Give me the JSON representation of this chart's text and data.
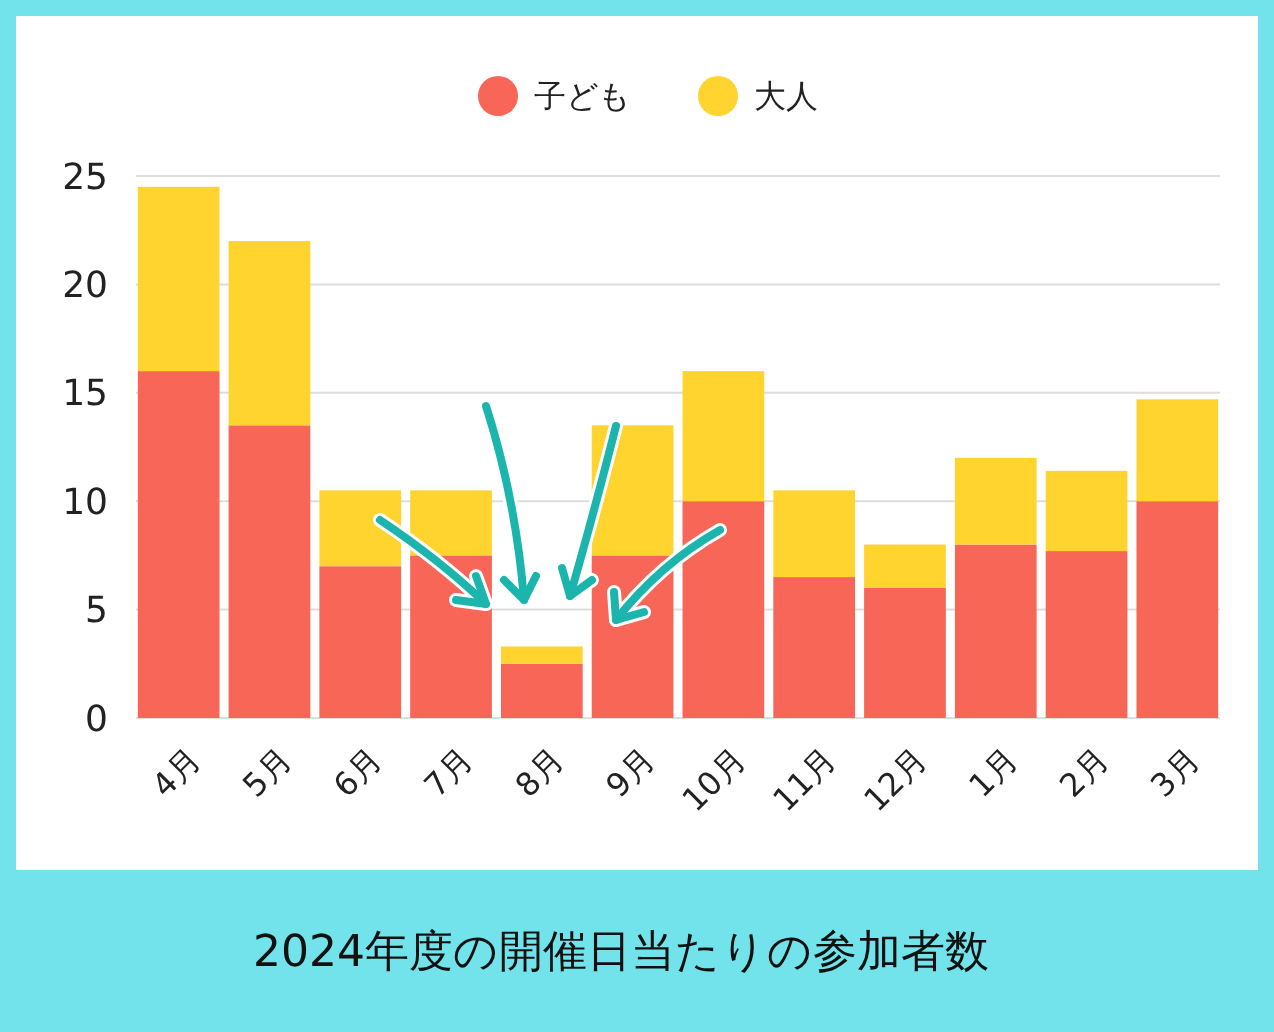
{
  "chart_data": {
    "type": "bar",
    "stacked": true,
    "title": "2024年度の開催日当たりの参加者数",
    "categories": [
      "4月",
      "5月",
      "6月",
      "7月",
      "8月",
      "9月",
      "10月",
      "11月",
      "12月",
      "1月",
      "2月",
      "3月"
    ],
    "series": [
      {
        "name": "子ども",
        "color": "#f76656",
        "values": [
          16,
          13.5,
          7,
          7.5,
          2.5,
          7.5,
          10,
          6.5,
          6,
          8,
          7.7,
          10
        ]
      },
      {
        "name": "大人",
        "color": "#ffd42f",
        "values": [
          8.5,
          8.5,
          3.5,
          3,
          0.8,
          6,
          6,
          4,
          2,
          4,
          3.7,
          4.7
        ]
      }
    ],
    "ylim": [
      0,
      25
    ],
    "yticks": [
      0,
      5,
      10,
      15,
      20,
      25
    ],
    "grid": "y",
    "legend": "top"
  }
}
